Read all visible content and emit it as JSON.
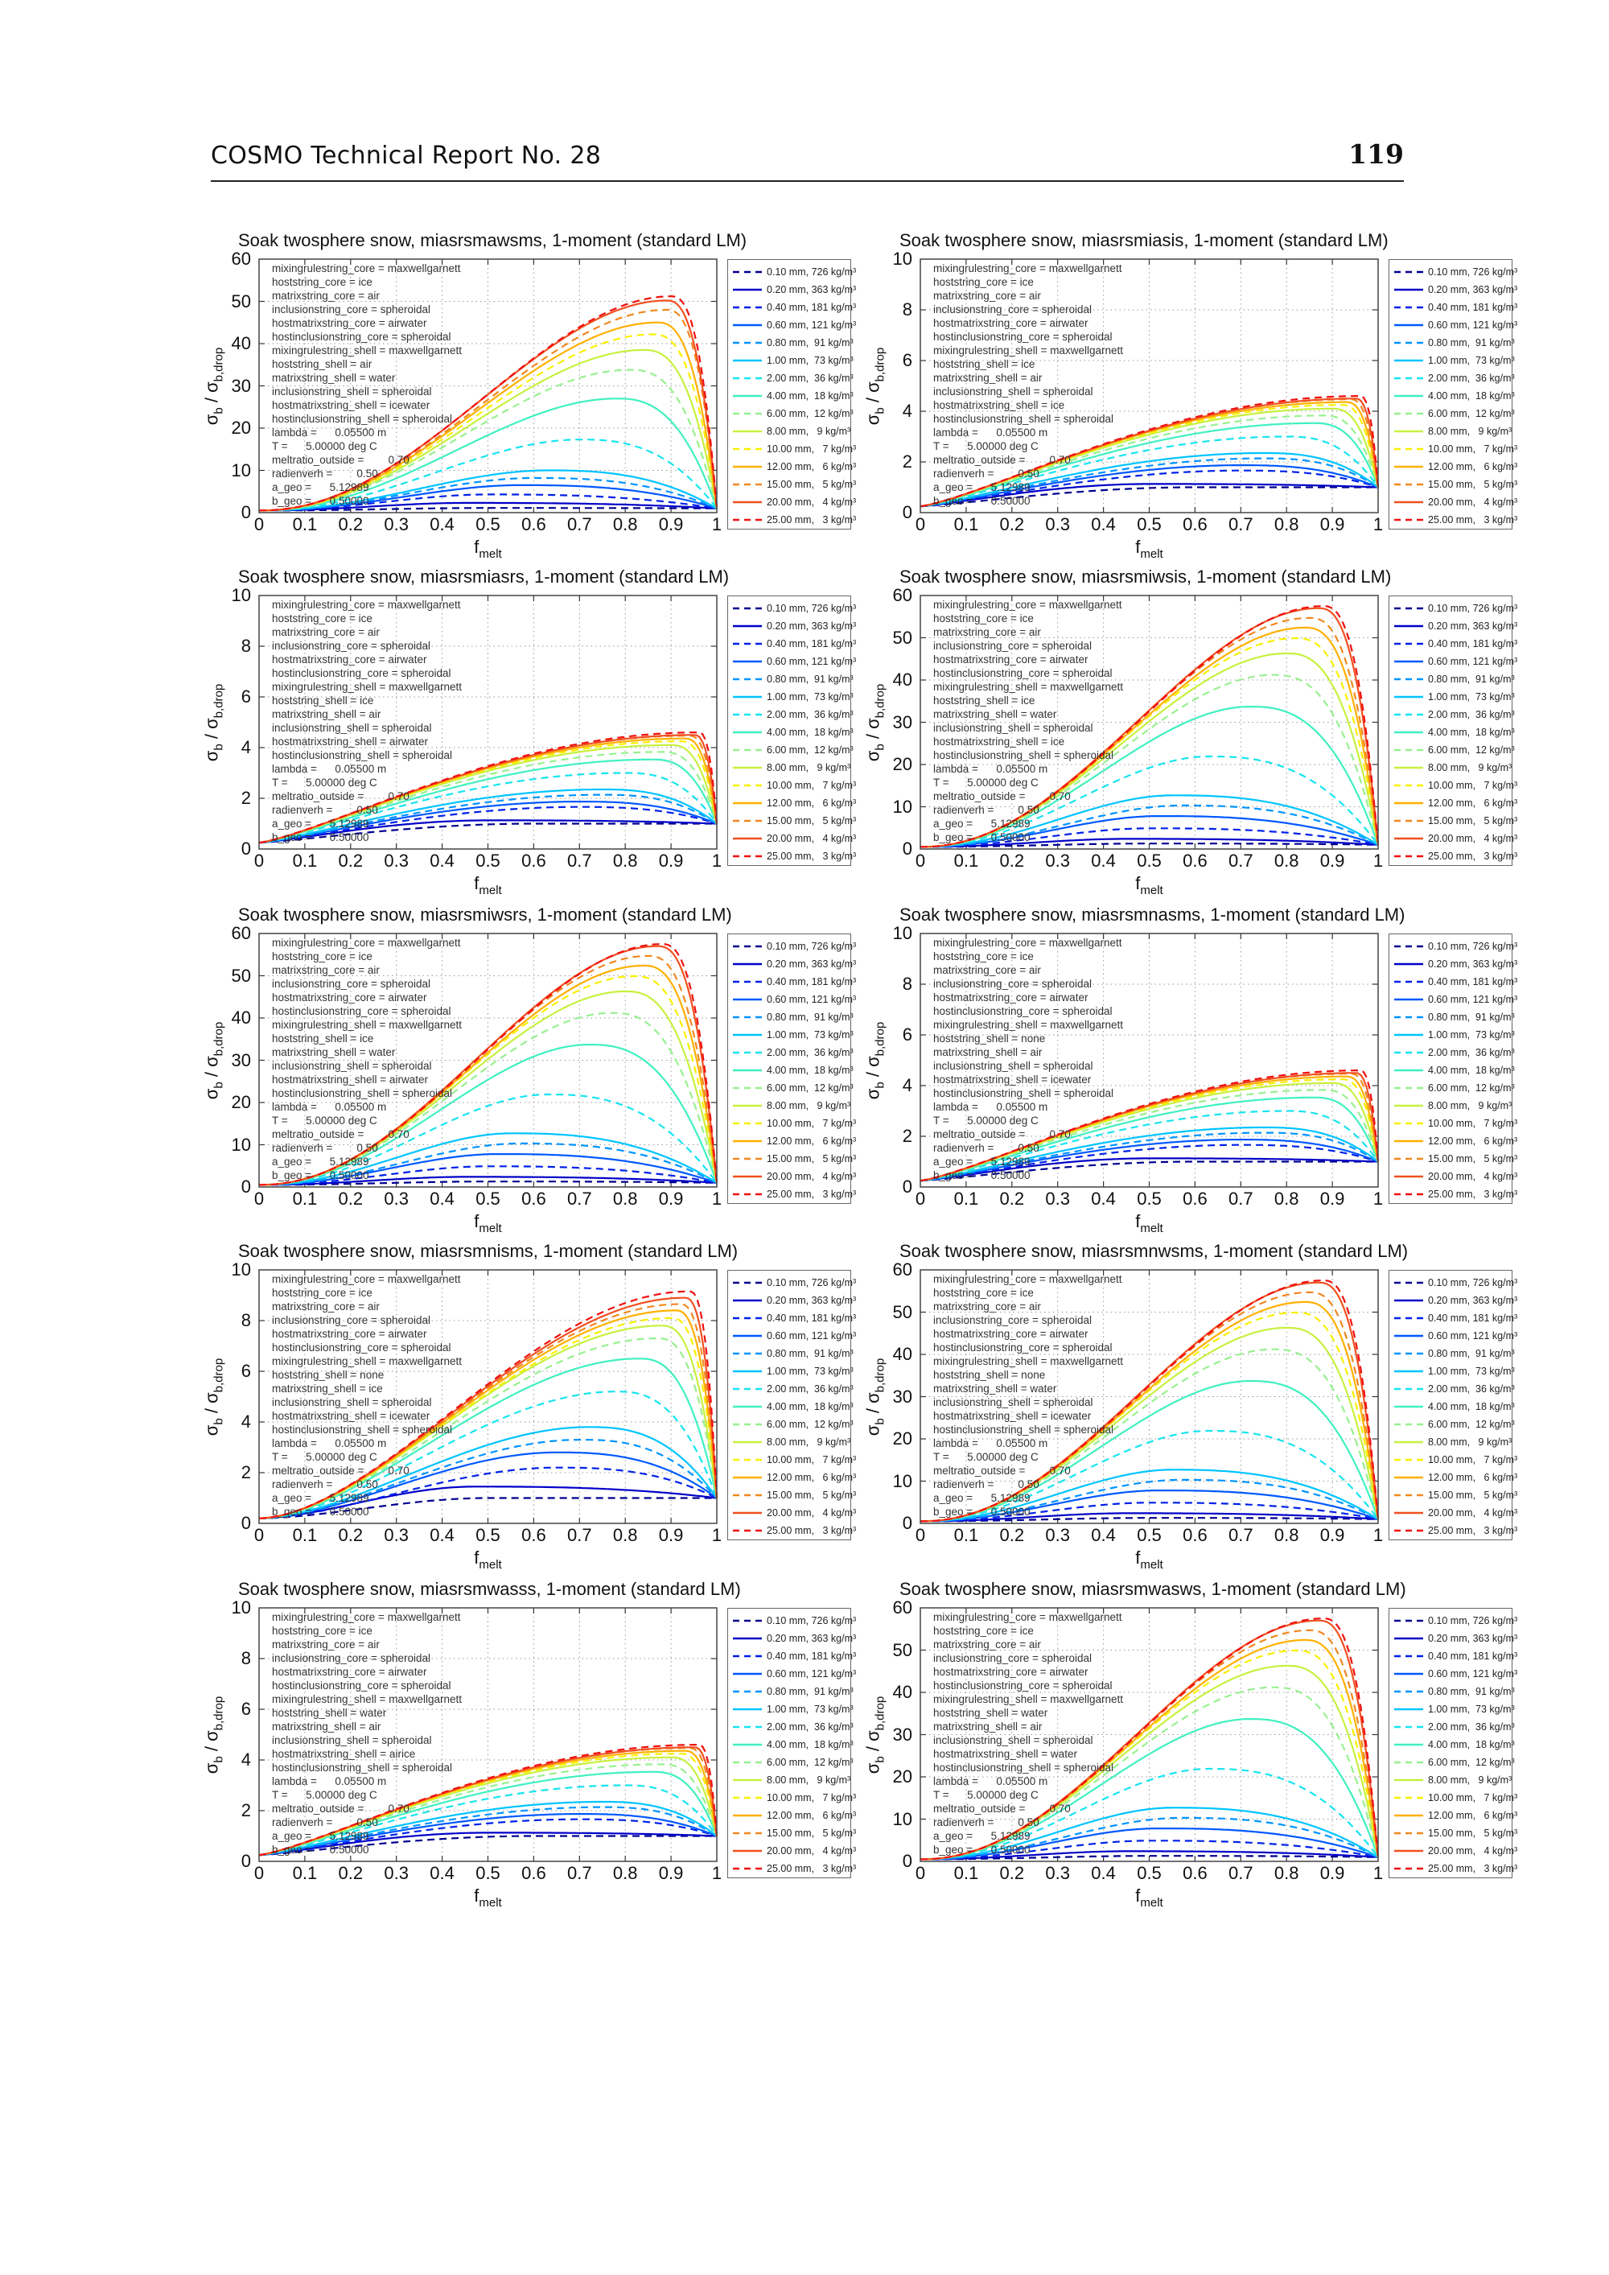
{
  "header": {
    "title": "COSMO Technical Report No. 28",
    "page": "119"
  },
  "axis": {
    "ylabel_main": "σ",
    "ylabel_sub1": "b",
    "ylabel_mid": " / σ",
    "ylabel_sub2": "b,drop",
    "xlabel_main": "f",
    "xlabel_sub": "melt"
  },
  "annotation_core": [
    "mixingrulestring_core = maxwellgarnett",
    "hoststring_core = ice",
    "matrixstring_core = air",
    "inclusionstring_core = spheroidal",
    "hostmatrixstring_core = airwater",
    "hostinclusionstring_core = spheroidal",
    "mixingrulestring_shell = maxwellgarnett"
  ],
  "annotation_params": [
    "lambda =      0.05500 m",
    "T =      5.00000 deg C",
    "meltratio_outside =        0.70",
    "radienverh =        0.50",
    "a_geo =      5.12989",
    "b_geo =      0.50000"
  ],
  "series_names": [
    "0.10 mm, 726 kg/m³",
    "0.20 mm, 363 kg/m³",
    "0.40 mm, 181 kg/m³",
    "0.60 mm, 121 kg/m³",
    "0.80 mm,  91 kg/m³",
    "1.00 mm,  73 kg/m³",
    "2.00 mm,  36 kg/m³",
    "4.00 mm,  18 kg/m³",
    "6.00 mm,  12 kg/m³",
    "8.00 mm,   9 kg/m³",
    "10.00 mm,   7 kg/m³",
    "12.00 mm,   6 kg/m³",
    "15.00 mm,   5 kg/m³",
    "20.00 mm,   4 kg/m³",
    "25.00 mm,   3 kg/m³"
  ],
  "series_styles": [
    {
      "color": "#00008f",
      "dashed": true
    },
    {
      "color": "#0000c8",
      "dashed": false
    },
    {
      "color": "#0020e8",
      "dashed": true
    },
    {
      "color": "#0058ff",
      "dashed": false
    },
    {
      "color": "#0094ff",
      "dashed": true
    },
    {
      "color": "#00c4ff",
      "dashed": false
    },
    {
      "color": "#18e4f0",
      "dashed": true
    },
    {
      "color": "#40f0c0",
      "dashed": false
    },
    {
      "color": "#98f090",
      "dashed": true
    },
    {
      "color": "#c8f040",
      "dashed": false
    },
    {
      "color": "#f8f000",
      "dashed": true
    },
    {
      "color": "#ffb000",
      "dashed": false
    },
    {
      "color": "#f08820",
      "dashed": true
    },
    {
      "color": "#f05020",
      "dashed": false
    },
    {
      "color": "#f01010",
      "dashed": true
    }
  ],
  "chart_data": [
    {
      "type": "line",
      "title": "Soak twosphere snow, miasrsmawsms, 1-moment (standard LM)",
      "xlim": [
        0,
        1
      ],
      "ylim": [
        0,
        60
      ],
      "xticks": [
        "0",
        "0.1",
        "0.2",
        "0.3",
        "0.4",
        "0.5",
        "0.6",
        "0.7",
        "0.8",
        "0.9",
        "1"
      ],
      "yticks": [
        "0",
        "10",
        "20",
        "30",
        "40",
        "50",
        "60"
      ],
      "annotation_shell": [
        "hoststring_shell = air",
        "matrixstring_shell = water",
        "inclusionstring_shell = spheroidal",
        "hostmatrixstring_shell = icewater",
        "hostinclusionstring_shell = spheroidal"
      ],
      "y_at_0": 0.5,
      "y_at_1": 1,
      "peak_f": [
        0.5,
        0.45,
        0.5,
        0.57,
        0.6,
        0.63,
        0.7,
        0.78,
        0.81,
        0.84,
        0.86,
        0.87,
        0.89,
        0.89,
        0.9
      ],
      "peak_y": [
        1.1,
        2.3,
        4.3,
        6.5,
        8.2,
        10,
        17.3,
        27,
        33.8,
        38.5,
        42.2,
        45,
        48,
        50.2,
        51.2
      ]
    },
    {
      "type": "line",
      "title": "Soak twosphere snow, miasrsmiasis, 1-moment (standard LM)",
      "xlim": [
        0,
        1
      ],
      "ylim": [
        0,
        10
      ],
      "xticks": [
        "0",
        "0.1",
        "0.2",
        "0.3",
        "0.4",
        "0.5",
        "0.6",
        "0.7",
        "0.8",
        "0.9",
        "1"
      ],
      "yticks": [
        "0",
        "2",
        "4",
        "6",
        "8",
        "10"
      ],
      "annotation_shell": [
        "hoststring_shell = ice",
        "matrixstring_shell = air",
        "inclusionstring_shell = spheroidal",
        "hostmatrixstring_shell = ice",
        "hostinclusionstring_shell = spheroidal"
      ],
      "y_at_0": 0.25,
      "y_at_1": 1,
      "peak_f": [
        0.6,
        0.5,
        0.7,
        0.7,
        0.75,
        0.75,
        0.8,
        0.86,
        0.88,
        0.9,
        0.92,
        0.93,
        0.94,
        0.95,
        0.96
      ],
      "peak_y": [
        1.0,
        1.13,
        1.66,
        1.87,
        2.14,
        2.35,
        3.0,
        3.53,
        3.83,
        4.1,
        4.25,
        4.36,
        4.47,
        4.5,
        4.6
      ]
    },
    {
      "type": "line",
      "title": "Soak twosphere snow, miasrsmiasrs, 1-moment (standard LM)",
      "xlim": [
        0,
        1
      ],
      "ylim": [
        0,
        10
      ],
      "xticks": [
        "0",
        "0.1",
        "0.2",
        "0.3",
        "0.4",
        "0.5",
        "0.6",
        "0.7",
        "0.8",
        "0.9",
        "1"
      ],
      "yticks": [
        "0",
        "2",
        "4",
        "6",
        "8",
        "10"
      ],
      "annotation_shell": [
        "hoststring_shell = ice",
        "matrixstring_shell = air",
        "inclusionstring_shell = spheroidal",
        "hostmatrixstring_shell = airwater",
        "hostinclusionstring_shell = spheroidal"
      ],
      "y_at_0": 0.25,
      "y_at_1": 1,
      "peak_f": [
        0.6,
        0.5,
        0.7,
        0.7,
        0.75,
        0.75,
        0.8,
        0.86,
        0.88,
        0.9,
        0.92,
        0.93,
        0.94,
        0.95,
        0.96
      ],
      "peak_y": [
        1.0,
        1.13,
        1.66,
        1.87,
        2.14,
        2.35,
        3.0,
        3.53,
        3.83,
        4.1,
        4.25,
        4.36,
        4.47,
        4.5,
        4.6
      ]
    },
    {
      "type": "line",
      "title": "Soak twosphere snow, miasrsmiwsis, 1-moment (standard LM)",
      "xlim": [
        0,
        1
      ],
      "ylim": [
        0,
        60
      ],
      "xticks": [
        "0",
        "0.1",
        "0.2",
        "0.3",
        "0.4",
        "0.5",
        "0.6",
        "0.7",
        "0.8",
        "0.9",
        "1"
      ],
      "yticks": [
        "0",
        "10",
        "20",
        "30",
        "40",
        "50",
        "60"
      ],
      "annotation_shell": [
        "hoststring_shell = ice",
        "matrixstring_shell = water",
        "inclusionstring_shell = spheroidal",
        "hostmatrixstring_shell = ice",
        "hostinclusionstring_shell = spheroidal"
      ],
      "y_at_0": 0.5,
      "y_at_1": 1,
      "peak_f": [
        0.5,
        0.45,
        0.5,
        0.52,
        0.57,
        0.55,
        0.63,
        0.72,
        0.77,
        0.8,
        0.82,
        0.84,
        0.85,
        0.87,
        0.88
      ],
      "peak_y": [
        1.3,
        2.4,
        4.9,
        7.8,
        10.3,
        12.7,
        21.9,
        33.7,
        41.2,
        46.3,
        49.9,
        52.4,
        54.7,
        57,
        57.5
      ]
    },
    {
      "type": "line",
      "title": "Soak twosphere snow, miasrsmiwsrs, 1-moment (standard LM)",
      "xlim": [
        0,
        1
      ],
      "ylim": [
        0,
        60
      ],
      "xticks": [
        "0",
        "0.1",
        "0.2",
        "0.3",
        "0.4",
        "0.5",
        "0.6",
        "0.7",
        "0.8",
        "0.9",
        "1"
      ],
      "yticks": [
        "0",
        "10",
        "20",
        "30",
        "40",
        "50",
        "60"
      ],
      "annotation_shell": [
        "hoststring_shell = ice",
        "matrixstring_shell = water",
        "inclusionstring_shell = spheroidal",
        "hostmatrixstring_shell = airwater",
        "hostinclusionstring_shell = spheroidal"
      ],
      "y_at_0": 0.5,
      "y_at_1": 1,
      "peak_f": [
        0.5,
        0.45,
        0.5,
        0.52,
        0.57,
        0.55,
        0.63,
        0.72,
        0.77,
        0.8,
        0.82,
        0.84,
        0.85,
        0.87,
        0.88
      ],
      "peak_y": [
        1.3,
        2.4,
        4.9,
        7.8,
        10.3,
        12.7,
        21.9,
        33.7,
        41.2,
        46.3,
        49.9,
        52.4,
        54.7,
        57,
        57.5
      ]
    },
    {
      "type": "line",
      "title": "Soak twosphere snow, miasrsmnasms, 1-moment (standard LM)",
      "xlim": [
        0,
        1
      ],
      "ylim": [
        0,
        10
      ],
      "xticks": [
        "0",
        "0.1",
        "0.2",
        "0.3",
        "0.4",
        "0.5",
        "0.6",
        "0.7",
        "0.8",
        "0.9",
        "1"
      ],
      "yticks": [
        "0",
        "2",
        "4",
        "6",
        "8",
        "10"
      ],
      "annotation_shell": [
        "hoststring_shell = none",
        "matrixstring_shell = air",
        "inclusionstring_shell = spheroidal",
        "hostmatrixstring_shell = icewater",
        "hostinclusionstring_shell = spheroidal"
      ],
      "y_at_0": 0.25,
      "y_at_1": 1,
      "peak_f": [
        0.6,
        0.5,
        0.7,
        0.7,
        0.75,
        0.75,
        0.8,
        0.86,
        0.88,
        0.9,
        0.92,
        0.93,
        0.94,
        0.95,
        0.96
      ],
      "peak_y": [
        1.0,
        1.13,
        1.66,
        1.87,
        2.14,
        2.35,
        3.0,
        3.53,
        3.83,
        4.1,
        4.25,
        4.36,
        4.47,
        4.5,
        4.6
      ]
    },
    {
      "type": "line",
      "title": "Soak twosphere snow, miasrsmnisms, 1-moment (standard LM)",
      "xlim": [
        0,
        1
      ],
      "ylim": [
        0,
        10
      ],
      "xticks": [
        "0",
        "0.1",
        "0.2",
        "0.3",
        "0.4",
        "0.5",
        "0.6",
        "0.7",
        "0.8",
        "0.9",
        "1"
      ],
      "yticks": [
        "0",
        "2",
        "4",
        "6",
        "8",
        "10"
      ],
      "annotation_shell": [
        "hoststring_shell = none",
        "matrixstring_shell = ice",
        "inclusionstring_shell = spheroidal",
        "hostmatrixstring_shell = icewater",
        "hostinclusionstring_shell = spheroidal"
      ],
      "y_at_0": 0.2,
      "y_at_1": 1,
      "peak_f": [
        0.5,
        0.47,
        0.65,
        0.65,
        0.7,
        0.72,
        0.78,
        0.83,
        0.87,
        0.88,
        0.9,
        0.91,
        0.92,
        0.93,
        0.94
      ],
      "peak_y": [
        1.0,
        1.45,
        2.2,
        2.8,
        3.3,
        3.8,
        5.2,
        6.5,
        7.3,
        7.8,
        8.1,
        8.4,
        8.65,
        8.9,
        9.15
      ]
    },
    {
      "type": "line",
      "title": "Soak twosphere snow, miasrsmnwsms, 1-moment (standard LM)",
      "xlim": [
        0,
        1
      ],
      "ylim": [
        0,
        60
      ],
      "xticks": [
        "0",
        "0.1",
        "0.2",
        "0.3",
        "0.4",
        "0.5",
        "0.6",
        "0.7",
        "0.8",
        "0.9",
        "1"
      ],
      "yticks": [
        "0",
        "10",
        "20",
        "30",
        "40",
        "50",
        "60"
      ],
      "annotation_shell": [
        "hoststring_shell = none",
        "matrixstring_shell = water",
        "inclusionstring_shell = spheroidal",
        "hostmatrixstring_shell = icewater",
        "hostinclusionstring_shell = spheroidal"
      ],
      "y_at_0": 0.5,
      "y_at_1": 1,
      "peak_f": [
        0.5,
        0.45,
        0.5,
        0.52,
        0.57,
        0.55,
        0.63,
        0.72,
        0.77,
        0.8,
        0.82,
        0.84,
        0.85,
        0.87,
        0.88
      ],
      "peak_y": [
        1.3,
        2.4,
        4.9,
        7.8,
        10.3,
        12.7,
        21.9,
        33.7,
        41.2,
        46.3,
        49.9,
        52.4,
        54.7,
        57,
        57.5
      ]
    },
    {
      "type": "line",
      "title": "Soak twosphere snow, miasrsmwasss, 1-moment (standard LM)",
      "xlim": [
        0,
        1
      ],
      "ylim": [
        0,
        10
      ],
      "xticks": [
        "0",
        "0.1",
        "0.2",
        "0.3",
        "0.4",
        "0.5",
        "0.6",
        "0.7",
        "0.8",
        "0.9",
        "1"
      ],
      "yticks": [
        "0",
        "2",
        "4",
        "6",
        "8",
        "10"
      ],
      "annotation_shell": [
        "hoststring_shell = water",
        "matrixstring_shell = air",
        "inclusionstring_shell = spheroidal",
        "hostmatrixstring_shell = airice",
        "hostinclusionstring_shell = spheroidal"
      ],
      "y_at_0": 0.25,
      "y_at_1": 1,
      "peak_f": [
        0.6,
        0.5,
        0.7,
        0.7,
        0.75,
        0.75,
        0.8,
        0.86,
        0.88,
        0.9,
        0.92,
        0.93,
        0.94,
        0.95,
        0.96
      ],
      "peak_y": [
        1.0,
        1.13,
        1.66,
        1.87,
        2.14,
        2.35,
        3.0,
        3.53,
        3.83,
        4.1,
        4.25,
        4.36,
        4.47,
        4.5,
        4.6
      ]
    },
    {
      "type": "line",
      "title": "Soak twosphere snow, miasrsmwasws, 1-moment (standard LM)",
      "xlim": [
        0,
        1
      ],
      "ylim": [
        0,
        60
      ],
      "xticks": [
        "0",
        "0.1",
        "0.2",
        "0.3",
        "0.4",
        "0.5",
        "0.6",
        "0.7",
        "0.8",
        "0.9",
        "1"
      ],
      "yticks": [
        "0",
        "10",
        "20",
        "30",
        "40",
        "50",
        "60"
      ],
      "annotation_shell": [
        "hoststring_shell = water",
        "matrixstring_shell = air",
        "inclusionstring_shell = spheroidal",
        "hostmatrixstring_shell = water",
        "hostinclusionstring_shell = spheroidal"
      ],
      "y_at_0": 0.5,
      "y_at_1": 1,
      "peak_f": [
        0.5,
        0.45,
        0.5,
        0.52,
        0.57,
        0.55,
        0.63,
        0.72,
        0.77,
        0.8,
        0.82,
        0.84,
        0.85,
        0.87,
        0.88
      ],
      "peak_y": [
        1.3,
        2.4,
        4.9,
        7.8,
        10.3,
        12.7,
        21.9,
        33.7,
        41.2,
        46.3,
        49.9,
        52.4,
        54.7,
        57,
        57.5
      ]
    }
  ]
}
